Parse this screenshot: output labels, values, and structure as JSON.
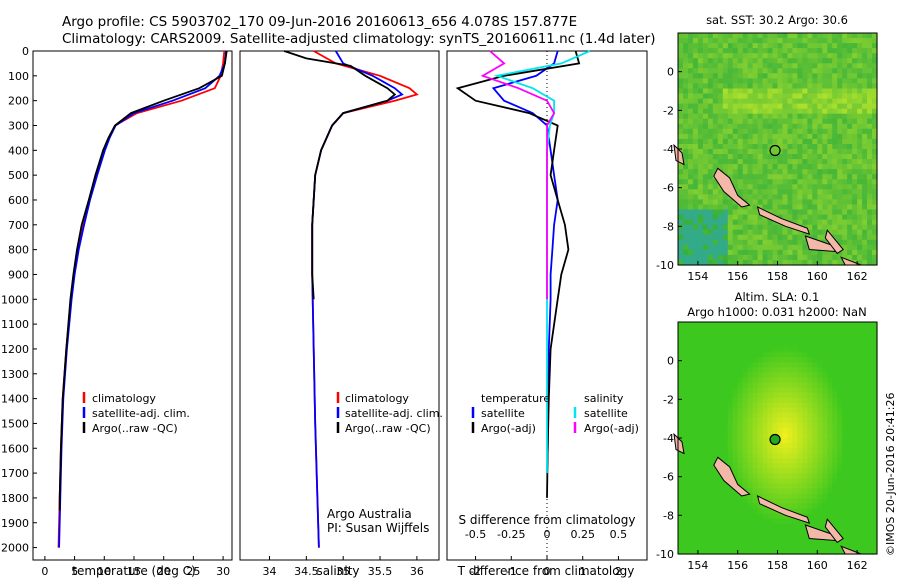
{
  "header": {
    "line1": "Argo profile: CS 5903702_170 09-Jun-2016 20160613_656 4.078S 157.877E",
    "line2": "Climatology: CARS2009. Satellite-adjusted climatology: synTS_20160611.nc (1.4d later)"
  },
  "credit": "©IMOS 20-Jun-2016 20:41:26",
  "colors": {
    "climatology": "#ff0000",
    "satellite": "#0000ff",
    "argo": "#000000",
    "salinity_satellite": "#00e5ee",
    "salinity_argo": "#ff00ff"
  },
  "chart_data": [
    {
      "type": "line",
      "xlabel": "temperature (deg C)",
      "ylabel": "",
      "xlim": [
        -2,
        31.5
      ],
      "ylim": [
        2050,
        0
      ],
      "xticks": [
        "0",
        "5",
        "10",
        "15",
        "20",
        "25",
        "30"
      ],
      "yticks": [
        "0",
        "100",
        "200",
        "300",
        "400",
        "500",
        "600",
        "700",
        "800",
        "900",
        "1000",
        "1100",
        "1200",
        "1300",
        "1400",
        "1500",
        "1600",
        "1700",
        "1800",
        "1900",
        "2000"
      ],
      "legend": [
        "climatology",
        "satellite-adj. clim.",
        "Argo(..raw -QC)"
      ],
      "series": [
        {
          "name": "climatology",
          "depth": [
            0,
            50,
            100,
            150,
            200,
            250,
            300,
            350,
            400,
            500,
            600,
            700,
            800,
            900,
            1000,
            1200,
            1400,
            1600,
            1800,
            2000
          ],
          "values": [
            30.2,
            30.0,
            29.6,
            28.6,
            23.0,
            15.5,
            11.8,
            10.8,
            10.0,
            8.7,
            7.5,
            6.5,
            5.6,
            4.9,
            4.4,
            3.6,
            3.0,
            2.7,
            2.5,
            2.3
          ]
        },
        {
          "name": "satellite-adj. clim.",
          "depth": [
            0,
            50,
            100,
            150,
            200,
            250,
            300,
            350,
            400,
            500,
            600,
            700,
            800,
            900,
            1000,
            1200,
            1400,
            1600,
            1800,
            2000
          ],
          "values": [
            30.5,
            30.3,
            29.4,
            27.0,
            21.5,
            15.0,
            11.9,
            10.9,
            10.1,
            8.8,
            7.6,
            6.6,
            5.7,
            5.0,
            4.5,
            3.7,
            3.1,
            2.8,
            2.6,
            2.4
          ]
        },
        {
          "name": "Argo(..raw -QC)",
          "depth": [
            0,
            50,
            100,
            150,
            200,
            250,
            300,
            350,
            400,
            500,
            600,
            700,
            800,
            900,
            1000,
            1200,
            1400,
            1600,
            1800,
            1850
          ],
          "values": [
            30.6,
            30.3,
            29.8,
            26.0,
            20.0,
            14.5,
            11.8,
            10.7,
            9.8,
            8.5,
            7.4,
            6.2,
            5.4,
            4.8,
            4.3,
            3.6,
            3.0,
            2.7,
            2.5,
            2.5
          ]
        }
      ],
      "annotation": ""
    },
    {
      "type": "line",
      "xlabel": "salinity",
      "xlim": [
        33.6,
        36.3
      ],
      "ylim": [
        2050,
        0
      ],
      "xticks": [
        "34",
        "34.5",
        "35",
        "35.5",
        "36"
      ],
      "legend": [
        "climatology",
        "satellite-adj. clim.",
        "Argo(..raw -QC)"
      ],
      "series": [
        {
          "name": "climatology",
          "depth": [
            0,
            50,
            100,
            150,
            175,
            200,
            250,
            300,
            400,
            500,
            700,
            900,
            1200,
            1500,
            1800,
            2000
          ],
          "values": [
            34.6,
            34.9,
            35.5,
            35.9,
            36.0,
            35.7,
            35.0,
            34.85,
            34.7,
            34.62,
            34.58,
            34.58,
            34.6,
            34.62,
            34.65,
            34.67
          ]
        },
        {
          "name": "satellite-adj. clim.",
          "depth": [
            0,
            50,
            100,
            150,
            175,
            200,
            250,
            300,
            400,
            500,
            700,
            900,
            1200,
            1500,
            1800,
            2000
          ],
          "values": [
            34.9,
            35.0,
            35.4,
            35.7,
            35.8,
            35.6,
            35.0,
            34.85,
            34.7,
            34.62,
            34.58,
            34.58,
            34.6,
            34.62,
            34.65,
            34.67
          ]
        },
        {
          "name": "Argo(..raw -QC)",
          "depth": [
            0,
            30,
            60,
            100,
            150,
            175,
            200,
            250,
            300,
            400,
            500,
            700,
            900,
            1000
          ],
          "values": [
            34.2,
            34.5,
            35.1,
            35.3,
            35.6,
            35.7,
            35.6,
            35.0,
            34.85,
            34.7,
            34.62,
            34.58,
            34.58,
            34.6
          ]
        }
      ],
      "annotation": [
        "Argo Australia",
        "PI: Susan Wijffels"
      ]
    },
    {
      "type": "line",
      "xlabel": "T difference from climatology",
      "xlabel_top": "S difference from climatology",
      "xlim": [
        -2.8,
        2.8
      ],
      "ylim": [
        2050,
        0
      ],
      "xticks": [
        "-2",
        "-1",
        "0",
        "1",
        "2"
      ],
      "xticks_top": [
        "-0.5",
        "-0.25",
        "0",
        "0.25",
        "0.5"
      ],
      "legend_left_title": "temperature",
      "legend_right_title": "salinity",
      "legend_left": [
        "satellite",
        "Argo(-adj)"
      ],
      "legend_right": [
        "satellite",
        "Argo(-adj)"
      ],
      "series": [
        {
          "name": "temperature satellite",
          "depth": [
            0,
            50,
            100,
            150,
            200,
            250,
            300,
            400,
            500,
            600,
            700,
            800,
            900,
            1000,
            1200,
            1400,
            1600,
            1700
          ],
          "values": [
            0.3,
            0.2,
            -0.3,
            -1.5,
            -1.2,
            -0.4,
            0.0,
            0.1,
            0.2,
            0.3,
            0.2,
            0.15,
            0.1,
            0.1,
            0.05,
            0.03,
            0.02,
            0.0
          ]
        },
        {
          "name": "temperature Argo(-adj)",
          "depth": [
            0,
            50,
            100,
            150,
            200,
            250,
            300,
            400,
            500,
            600,
            700,
            800,
            900,
            1000,
            1200,
            1400,
            1600,
            1800
          ],
          "values": [
            0.8,
            0.9,
            -1.2,
            -2.5,
            -2.0,
            -0.5,
            0.3,
            0.2,
            0.1,
            0.3,
            0.5,
            0.6,
            0.4,
            0.3,
            0.1,
            0.05,
            0.02,
            0.0
          ]
        },
        {
          "name": "salinity satellite",
          "depth": [
            0,
            50,
            100,
            150,
            200,
            250,
            300,
            400,
            600,
            800,
            1000,
            1200,
            1400,
            1600,
            1700
          ],
          "values": [
            0.3,
            0.1,
            -0.35,
            -0.1,
            0.05,
            0.05,
            0.02,
            0.0,
            0.0,
            0.0,
            0.0,
            0.0,
            0.0,
            0.0,
            0.0
          ]
        },
        {
          "name": "salinity Argo(-adj)",
          "depth": [
            0,
            50,
            100,
            150,
            200,
            250,
            300,
            400,
            600,
            800,
            1000
          ],
          "values": [
            -0.4,
            -0.3,
            -0.45,
            -0.2,
            0.0,
            0.05,
            0.0,
            0.0,
            0.0,
            0.0,
            0.0
          ]
        }
      ]
    },
    {
      "type": "heatmap",
      "title": "sat. SST: 30.2  Argo: 30.6",
      "xlim": [
        153,
        163
      ],
      "ylim": [
        -10,
        2
      ],
      "xticks": [
        "154",
        "156",
        "158",
        "160",
        "162"
      ],
      "yticks": [
        "0",
        "-2",
        "-4",
        "-6",
        "-8",
        "-10"
      ],
      "marker": {
        "lon": 157.877,
        "lat": -4.078
      }
    },
    {
      "type": "heatmap",
      "title": "Altim. SLA: 0.1",
      "subtitle": "Argo h1000: 0.031 h2000: NaN",
      "xlim": [
        153,
        163
      ],
      "ylim": [
        -10,
        2
      ],
      "xticks": [
        "154",
        "156",
        "158",
        "160",
        "162"
      ],
      "yticks": [
        "0",
        "-2",
        "-4",
        "-6",
        "-8",
        "-10"
      ],
      "marker": {
        "lon": 157.877,
        "lat": -4.078
      }
    }
  ]
}
